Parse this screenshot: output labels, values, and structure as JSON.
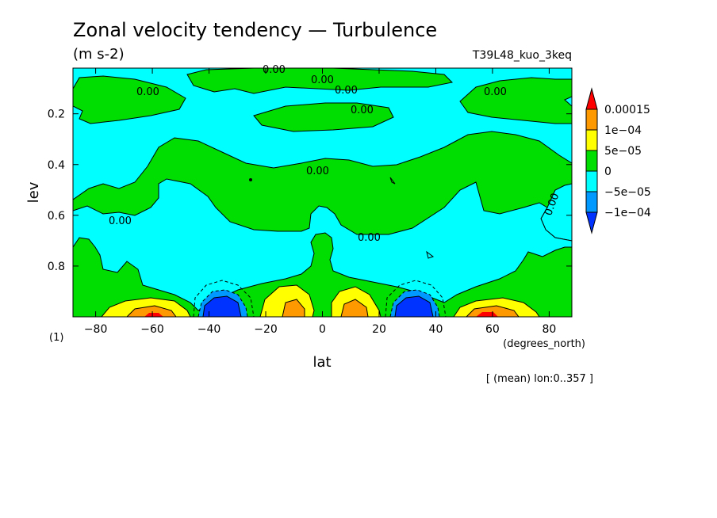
{
  "chart_data": {
    "type": "heatmap",
    "title": "Zonal velocity tendency — Turbulence",
    "units": "(m s-2)",
    "run_name": "T39L48_kuo_3keq",
    "xlabel": "lat",
    "x_units": "(degrees_north)",
    "ylabel": "lev",
    "y_units": "(1)",
    "footnote": "[ (mean) lon:0..357 ]",
    "xlim": [
      -88,
      88
    ],
    "ylim": [
      1.0,
      0.02
    ],
    "y_axis_inverted": true,
    "x_ticks": [
      -80,
      -60,
      -40,
      -20,
      0,
      20,
      40,
      60,
      80
    ],
    "x_tick_labels": [
      "−80",
      "−60",
      "−40",
      "−20",
      "0",
      "20",
      "40",
      "60",
      "80"
    ],
    "y_ticks": [
      0.2,
      0.4,
      0.6,
      0.8
    ],
    "y_tick_labels": [
      "0.2",
      "0.4",
      "0.6",
      "0.8"
    ],
    "contour_levels": [
      -0.0001,
      -5e-05,
      0,
      5e-05,
      0.0001,
      0.00015
    ],
    "legend_labels": [
      "0.00015",
      "1e−04",
      "5e−05",
      "0",
      "−5e−05",
      "−1e−04"
    ],
    "legend_colors": [
      "#ff0000",
      "#ff9900",
      "#ffff00",
      "#00dd00",
      "#00ffff",
      "#0099ff",
      "#0033ff"
    ],
    "legend_placement": "right",
    "contour_labels": [
      "0.00",
      "0.00",
      "0.00",
      "0.00",
      "0.00",
      "0.00",
      "0.00",
      "0.00",
      "0.00",
      "0.00"
    ],
    "features": [
      {
        "kind": "positive_max",
        "lat": -57,
        "lev": 0.98,
        "value": 0.00012
      },
      {
        "kind": "negative_min",
        "lat": -33,
        "lev": 0.98,
        "value": -0.00011
      },
      {
        "kind": "positive_max",
        "lat": -11,
        "lev": 0.97,
        "value": 8e-05
      },
      {
        "kind": "positive_max",
        "lat": 12,
        "lev": 0.97,
        "value": 8e-05
      },
      {
        "kind": "negative_min",
        "lat": 33,
        "lev": 0.98,
        "value": -0.00011
      },
      {
        "kind": "positive_max",
        "lat": 57,
        "lev": 0.98,
        "value": 0.00013
      }
    ]
  }
}
